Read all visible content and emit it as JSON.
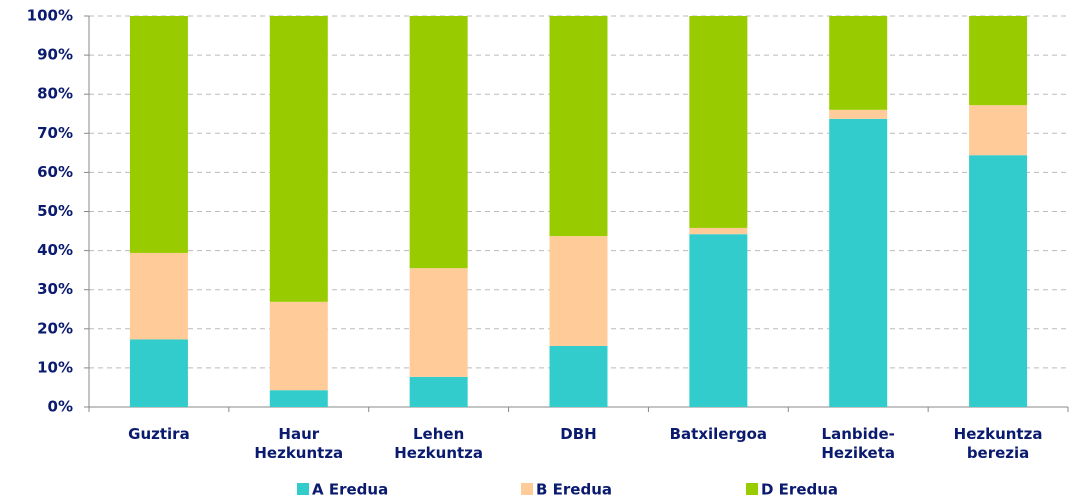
{
  "chart_data": {
    "type": "stacked_bar",
    "categories": [
      "Guztira",
      "Haur Hezkuntza",
      "Lehen Hezkuntza",
      "DBH",
      "Batxilergoa",
      "Lanbide-Heziketa",
      "Hezkuntza berezia"
    ],
    "series": [
      {
        "name": "A Eredua",
        "color": "#33cccc",
        "values": [
          17.3,
          4.3,
          7.7,
          15.6,
          44.2,
          73.7,
          64.4
        ]
      },
      {
        "name": "B Eredua",
        "color": "#ffcc99",
        "values": [
          22.1,
          22.6,
          27.8,
          28.1,
          1.6,
          2.3,
          12.8
        ]
      },
      {
        "name": "D Eredua",
        "color": "#99cc00",
        "values": [
          60.6,
          73.1,
          64.5,
          56.3,
          54.2,
          24.0,
          22.8
        ]
      }
    ],
    "ylim": [
      0,
      100
    ],
    "yticks": [
      {
        "value": 0,
        "label": "0%"
      },
      {
        "value": 10,
        "label": "10%"
      },
      {
        "value": 20,
        "label": "20%"
      },
      {
        "value": 30,
        "label": "30%"
      },
      {
        "value": 40,
        "label": "40%"
      },
      {
        "value": 50,
        "label": "50%"
      },
      {
        "value": 60,
        "label": "60%"
      },
      {
        "value": 70,
        "label": "70%"
      },
      {
        "value": 80,
        "label": "80%"
      },
      {
        "value": 90,
        "label": "90%"
      },
      {
        "value": 100,
        "label": "100%"
      }
    ],
    "grid": true,
    "legend": "bottom"
  }
}
